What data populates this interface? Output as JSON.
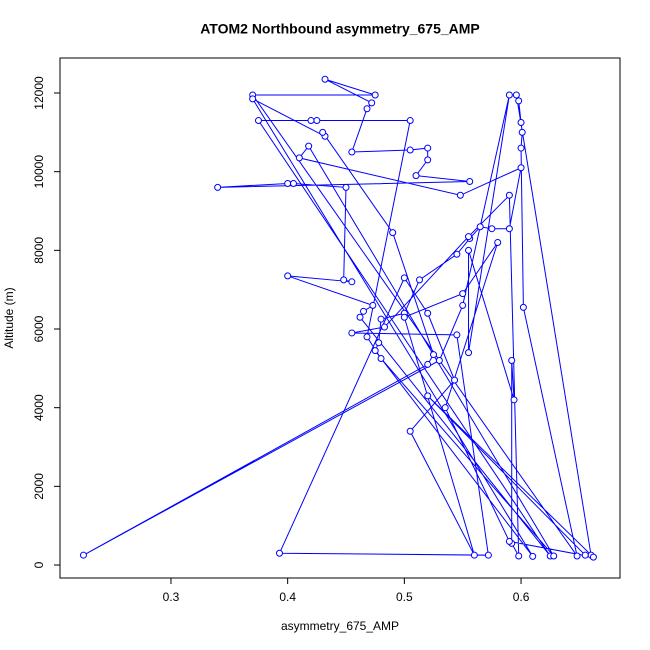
{
  "chart_data": {
    "type": "line",
    "title": "ATOM2 Northbound asymmetry_675_AMP",
    "xlabel": "asymmetry_675_AMP",
    "ylabel": "Altitude (m)",
    "xlim": [
      0.2049,
      0.6848
    ],
    "ylim": [
      -330,
      12890
    ],
    "xticks": [
      0.3,
      0.4,
      0.5,
      0.6
    ],
    "yticks": [
      0,
      2000,
      4000,
      6000,
      8000,
      10000,
      12000
    ],
    "x": [
      0.66,
      0.596,
      0.598,
      0.6,
      0.601,
      0.6,
      0.602,
      0.648,
      0.37,
      0.475,
      0.432,
      0.472,
      0.468,
      0.455,
      0.505,
      0.52,
      0.52,
      0.51,
      0.556,
      0.34,
      0.4,
      0.405,
      0.45,
      0.448,
      0.455,
      0.4,
      0.473,
      0.465,
      0.462,
      0.625,
      0.375,
      0.425,
      0.42,
      0.505,
      0.468,
      0.48,
      0.628,
      0.418,
      0.41,
      0.548,
      0.6,
      0.59,
      0.575,
      0.565,
      0.556,
      0.545,
      0.513,
      0.5,
      0.48,
      0.478,
      0.475,
      0.61,
      0.37,
      0.432,
      0.43,
      0.49,
      0.525,
      0.52,
      0.225,
      0.53,
      0.55,
      0.59,
      0.555,
      0.555,
      0.594,
      0.592,
      0.592,
      0.598,
      0.59,
      0.555,
      0.483,
      0.455,
      0.545,
      0.572,
      0.393,
      0.5,
      0.52,
      0.543,
      0.505,
      0.56,
      0.5,
      0.55,
      0.58,
      0.535,
      0.59,
      0.662,
      0.52,
      0.655
    ],
    "series": [
      {
        "color": "#0000ff",
        "values": [
          250,
          11950,
          11800,
          11250,
          11000,
          10600,
          6550,
          230,
          11950,
          11950,
          12350,
          11750,
          11600,
          10500,
          10550,
          10600,
          10300,
          9900,
          9750,
          9600,
          9700,
          9700,
          9600,
          7250,
          7200,
          7350,
          6600,
          6450,
          6300,
          230,
          11300,
          11300,
          11300,
          11300,
          5800,
          5250,
          230,
          10650,
          10350,
          9400,
          10100,
          8550,
          8550,
          8600,
          8300,
          7900,
          7250,
          6400,
          6250,
          5650,
          5450,
          220,
          11850,
          10900,
          11000,
          8450,
          5350,
          5100,
          250,
          5200,
          6600,
          11950,
          5400,
          8000,
          4200,
          5200,
          550,
          230,
          9400,
          8350,
          6050,
          5900,
          5850,
          250,
          300,
          7300,
          6400,
          4700,
          3400,
          250,
          6300,
          6900,
          8200,
          4000,
          600,
          200,
          4300,
          250
        ]
      }
    ]
  }
}
